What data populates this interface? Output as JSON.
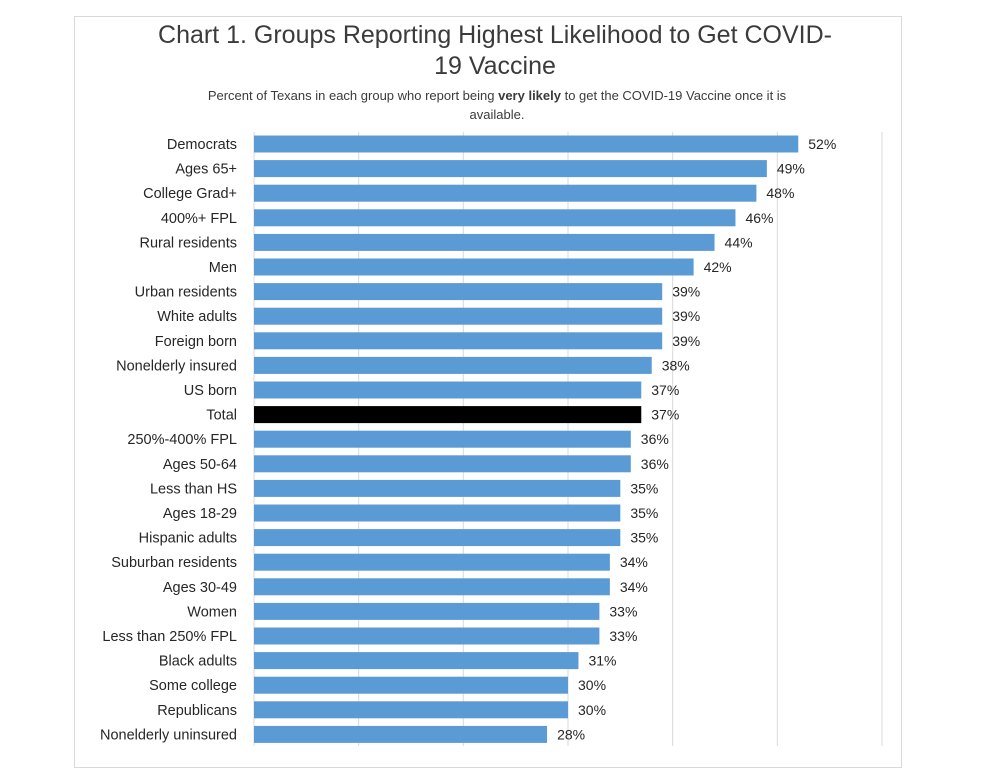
{
  "chart_data": {
    "type": "bar",
    "orientation": "horizontal",
    "title": "Chart 1. Groups Reporting Highest Likelihood to Get COVID-19 Vaccine",
    "subtitle_before": "Percent of Texans in each group who report being ",
    "subtitle_bold": "very likely",
    "subtitle_after": " to get the COVID-19 Vaccine once it is available.",
    "xlabel": "",
    "ylabel": "",
    "xlim": [
      0,
      60
    ],
    "grid": "vertical",
    "legend": "none",
    "value_format": "percent",
    "bar_color": "#5b9bd5",
    "highlight_color": "#000000",
    "highlight_category": "Total",
    "categories": [
      "Democrats",
      "Ages 65+",
      "College Grad+",
      "400%+ FPL",
      "Rural residents",
      "Men",
      "Urban residents",
      "White adults",
      "Foreign born",
      "Nonelderly insured",
      "US born",
      "Total",
      "250%-400% FPL",
      "Ages 50-64",
      "Less than HS",
      "Ages 18-29",
      "Hispanic adults",
      "Suburban residents",
      "Ages 30-49",
      "Women",
      "Less than 250% FPL",
      "Black adults",
      "Some college",
      "Republicans",
      "Nonelderly uninsured"
    ],
    "values": [
      52,
      49,
      48,
      46,
      44,
      42,
      39,
      39,
      39,
      38,
      37,
      37,
      36,
      36,
      35,
      35,
      35,
      34,
      34,
      33,
      33,
      31,
      30,
      30,
      28
    ]
  }
}
